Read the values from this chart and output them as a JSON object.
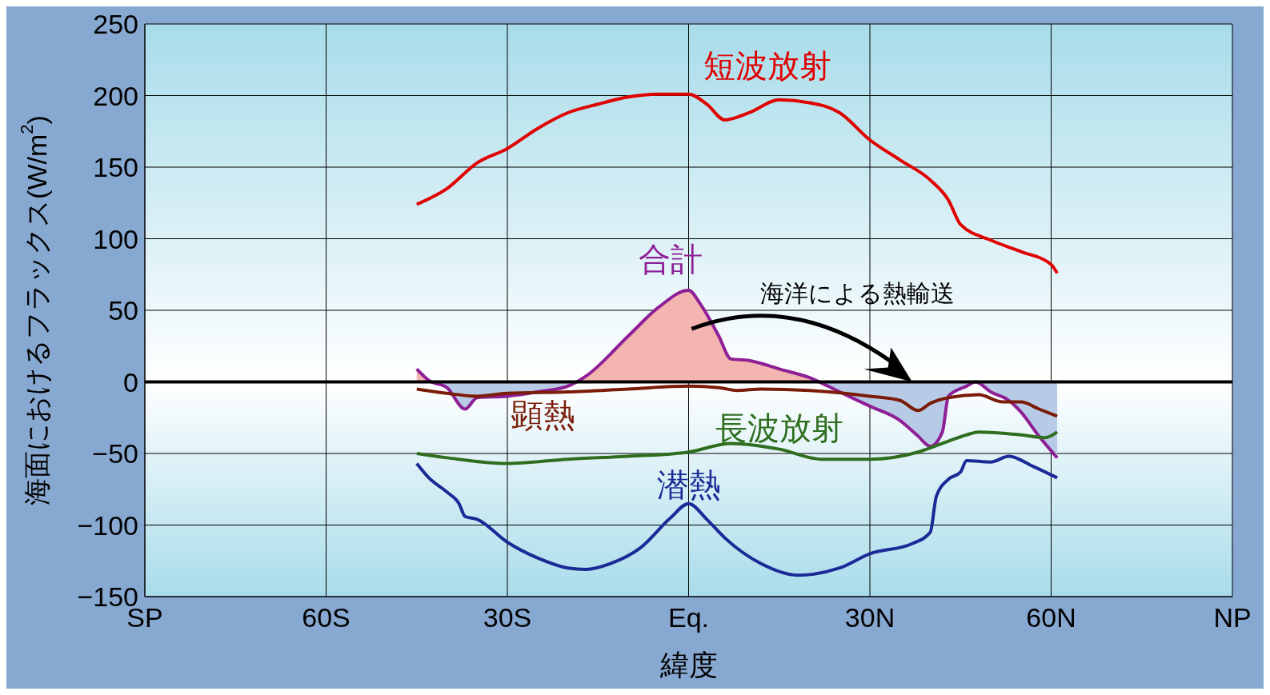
{
  "chart_data": {
    "type": "line",
    "xlabel": "緯度",
    "ylabel": "海面におけるフラックス(W/m$^{2}$)",
    "xlim": [
      -90,
      90
    ],
    "xticks": [
      {
        "value": -90,
        "label": "SP"
      },
      {
        "value": -60,
        "label": "60S"
      },
      {
        "value": -30,
        "label": "30S"
      },
      {
        "value": 0,
        "label": "Eq."
      },
      {
        "value": 30,
        "label": "30N"
      },
      {
        "value": 60,
        "label": "60N"
      },
      {
        "value": 90,
        "label": "NP"
      }
    ],
    "ylim": [
      -150,
      250
    ],
    "yticks": [
      -150,
      -100,
      -50,
      0,
      50,
      100,
      150,
      200,
      250
    ],
    "grid": true,
    "marker": "none",
    "line_style": "solid",
    "ref_lines": [
      {
        "axis": "y",
        "value": 0,
        "color": "#000000"
      }
    ],
    "annotations": [
      "海洋による熱輸送"
    ],
    "series": [
      {
        "name": "短波放射",
        "color": "#e00000",
        "x": [
          -45,
          -40,
          -35,
          -30,
          -25,
          -20,
          -15,
          -10,
          -5,
          0,
          3,
          6,
          10,
          15,
          20,
          25,
          30,
          35,
          40,
          43,
          45,
          50,
          55,
          60,
          61
        ],
        "values": [
          124,
          135,
          153,
          163,
          177,
          188,
          194,
          199,
          201,
          201,
          194,
          183,
          188,
          197,
          195,
          188,
          169,
          155,
          141,
          127,
          110,
          99,
          91,
          82,
          76
        ]
      },
      {
        "name": "合計",
        "type": "area",
        "color": "#8e1f96",
        "x": [
          -45,
          -43,
          -40,
          -37,
          -35,
          -30,
          -25,
          -20,
          -17,
          -10,
          -5,
          0,
          2,
          5,
          7,
          10,
          15,
          20,
          25,
          30,
          35,
          38,
          40,
          42,
          43,
          46,
          47.5,
          50,
          53,
          55,
          58,
          61
        ],
        "values": [
          9,
          1,
          -4,
          -19,
          -11,
          -10,
          -7,
          -3,
          4,
          32,
          52,
          64,
          54,
          32,
          16,
          15,
          9,
          3,
          -7,
          -17,
          -27,
          -38,
          -45,
          -35,
          -10,
          -3,
          0,
          -7,
          -13,
          -21,
          -38,
          -53
        ]
      },
      {
        "name": "顕熱",
        "color": "#7a1c08",
        "x": [
          -45,
          -40,
          -35,
          -30,
          -20,
          -10,
          0,
          5,
          8,
          12,
          20,
          30,
          35,
          38,
          40,
          43,
          48,
          52,
          55,
          58,
          61
        ],
        "values": [
          -5,
          -8,
          -10,
          -8,
          -7,
          -5,
          -3,
          -4,
          -6,
          -5,
          -6,
          -10,
          -13,
          -20,
          -15,
          -11,
          -9,
          -14,
          -14,
          -19,
          -24
        ]
      },
      {
        "name": "長波放射",
        "color": "#2e6e1e",
        "x": [
          -45,
          -40,
          -30,
          -20,
          -10,
          0,
          7,
          15,
          22,
          30,
          38,
          42,
          46,
          48,
          55,
          59,
          61
        ],
        "values": [
          -50,
          -53,
          -57,
          -54,
          -52,
          -49,
          -43,
          -47,
          -54,
          -54,
          -49,
          -43,
          -37,
          -35,
          -37,
          -39,
          -35
        ]
      },
      {
        "name": "潜熱",
        "color": "#1a2a96",
        "x": [
          -45,
          -43,
          -40,
          -38,
          -37,
          -35,
          -30,
          -25,
          -20,
          -17,
          -13,
          -8,
          -3,
          0,
          3,
          6,
          12,
          18,
          25,
          30,
          37,
          40,
          41,
          43,
          45,
          46,
          50,
          53,
          57,
          61
        ],
        "values": [
          -57,
          -67,
          -77,
          -85,
          -94,
          -96,
          -112,
          -123,
          -130,
          -131,
          -127,
          -116,
          -95,
          -85,
          -96,
          -109,
          -127,
          -135,
          -130,
          -120,
          -113,
          -105,
          -80,
          -68,
          -63,
          -55,
          -56,
          -52,
          -59,
          -67
        ]
      }
    ]
  }
}
